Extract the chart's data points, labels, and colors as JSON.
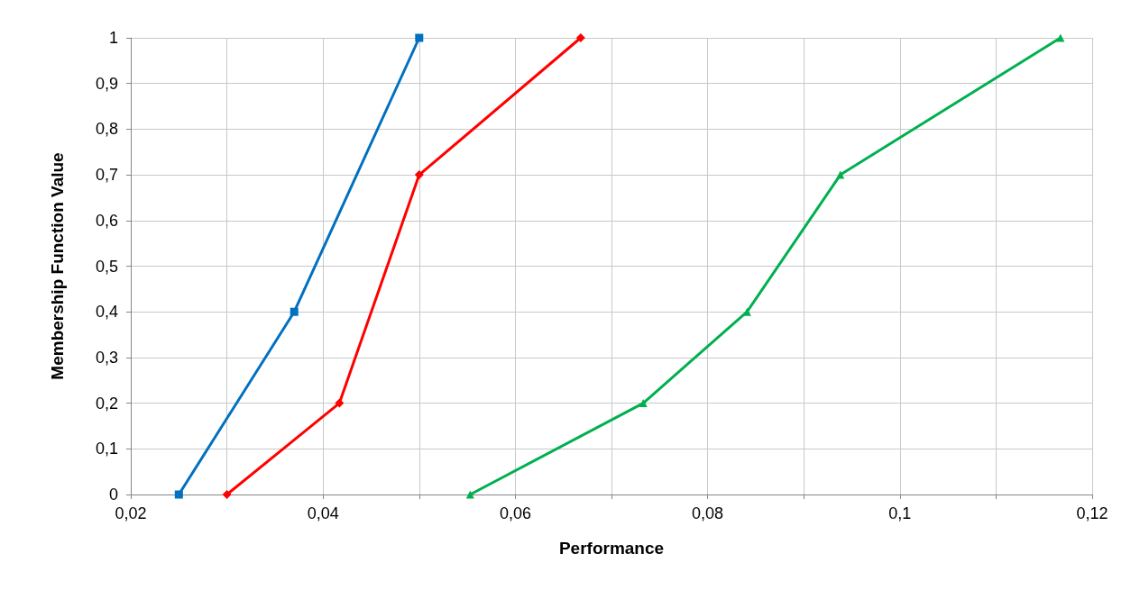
{
  "chart_data": {
    "type": "line",
    "xlabel": "Performance",
    "ylabel": "Membership Function Value",
    "xlim": [
      0.02,
      0.12
    ],
    "ylim": [
      0,
      1
    ],
    "xticks": [
      {
        "value": 0.02,
        "label": "0,02"
      },
      {
        "value": 0.03,
        "label": null
      },
      {
        "value": 0.04,
        "label": "0,04"
      },
      {
        "value": 0.05,
        "label": null
      },
      {
        "value": 0.06,
        "label": "0,06"
      },
      {
        "value": 0.07,
        "label": null
      },
      {
        "value": 0.08,
        "label": "0,08"
      },
      {
        "value": 0.09,
        "label": null
      },
      {
        "value": 0.1,
        "label": "0,1"
      },
      {
        "value": 0.11,
        "label": null
      },
      {
        "value": 0.12,
        "label": "0,12"
      }
    ],
    "yticks": [
      0,
      {
        "value": 0.1,
        "label": "0,1"
      },
      {
        "value": 0.2,
        "label": "0,2"
      },
      {
        "value": 0.3,
        "label": "0,3"
      },
      {
        "value": 0.4,
        "label": "0,4"
      },
      {
        "value": 0.5,
        "label": "0,5"
      },
      {
        "value": 0.6,
        "label": "0,6"
      },
      {
        "value": 0.7,
        "label": "0,7"
      },
      {
        "value": 0.8,
        "label": "0,8"
      },
      {
        "value": 0.9,
        "label": "0,9"
      },
      1
    ],
    "grid": true,
    "line_style": "solid",
    "series": [
      {
        "color": "#0070c0",
        "marker": "square",
        "x": [
          0.025,
          0.037,
          0.05
        ],
        "values": [
          0,
          0.4,
          1
        ]
      },
      {
        "color": "#ff0000",
        "marker": "diamond",
        "x": [
          0.03,
          0.0417,
          0.05,
          0.0668
        ],
        "values": [
          0,
          0.2,
          0.7,
          1
        ]
      },
      {
        "color": "#00b050",
        "marker": "triangle",
        "x": [
          0.0553,
          0.0733,
          0.0841,
          0.0938,
          0.1167
        ],
        "values": [
          0,
          0.2,
          0.4,
          0.7,
          1
        ]
      }
    ]
  }
}
